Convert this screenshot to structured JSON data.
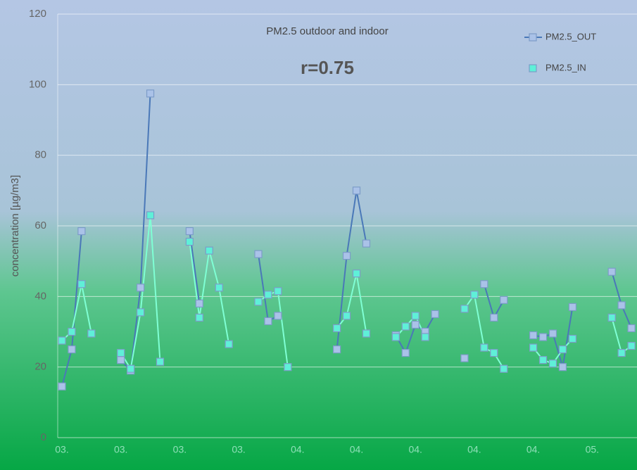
{
  "chart_data": {
    "type": "line",
    "title": "PM2.5  outdoor and indoor",
    "annotation": "r=0.75",
    "y_label": "concentration [µg/m3]",
    "categories": [
      "03.",
      null,
      null,
      null,
      null,
      null,
      "03.",
      null,
      null,
      null,
      null,
      null,
      "03.",
      null,
      null,
      null,
      null,
      null,
      "03.",
      null,
      null,
      null,
      null,
      null,
      "04.",
      null,
      null,
      null,
      null,
      null,
      "04.",
      null,
      null,
      null,
      null,
      null,
      "04.",
      null,
      null,
      null,
      null,
      null,
      "04.",
      null,
      null,
      null,
      null,
      null,
      "04.",
      null,
      null,
      null,
      null,
      null,
      "05.",
      null,
      null,
      null,
      null
    ],
    "series": [
      {
        "name": "PM2.5_OUT",
        "color": "#4a78b8",
        "marker_color": "#aac2e8",
        "values": [
          14.5,
          25,
          58.5,
          null,
          null,
          null,
          22,
          19,
          42.5,
          97.5,
          null,
          null,
          null,
          58.5,
          38,
          null,
          null,
          null,
          null,
          null,
          52,
          33,
          34.5,
          null,
          null,
          null,
          null,
          null,
          25,
          51.5,
          70,
          55,
          null,
          null,
          29,
          24,
          32,
          30,
          35,
          null,
          null,
          22.5,
          null,
          43.5,
          34,
          39,
          null,
          null,
          29,
          28.5,
          29.5,
          20,
          37,
          null,
          null,
          null,
          47,
          37.5,
          31
        ]
      },
      {
        "name": "PM2.5_IN",
        "color": "#7fffd4",
        "marker_color": "#5ff0d8",
        "values": [
          27.5,
          30,
          43.5,
          29.5,
          null,
          null,
          24,
          19.5,
          35.5,
          63,
          21.5,
          null,
          null,
          55.5,
          34,
          53,
          42.5,
          26.5,
          null,
          null,
          38.5,
          40.5,
          41.5,
          20,
          null,
          null,
          null,
          null,
          31,
          34.5,
          46.5,
          29.5,
          null,
          null,
          28.5,
          31.5,
          34.5,
          28.5,
          null,
          null,
          null,
          36.5,
          40.5,
          25.5,
          24,
          19.5,
          null,
          null,
          25.5,
          22,
          21,
          25,
          28,
          null,
          null,
          null,
          34,
          24,
          26
        ]
      }
    ],
    "ylim": [
      0,
      120
    ],
    "yticks": [
      0,
      20,
      40,
      60,
      80,
      100,
      120
    ],
    "grid": true,
    "legend": "top-right"
  }
}
